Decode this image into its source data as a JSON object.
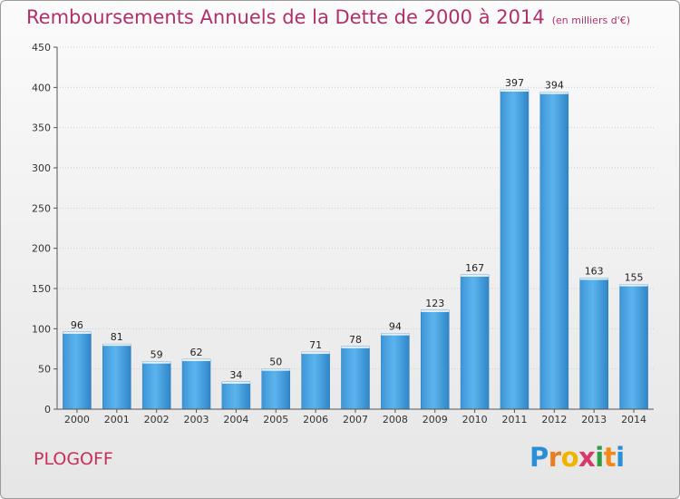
{
  "chart_data": {
    "type": "bar",
    "title": "Remboursements Annuels de la Dette de 2000 à 2014",
    "unit": "(en milliers d'€)",
    "categories": [
      "2000",
      "2001",
      "2002",
      "2003",
      "2004",
      "2005",
      "2006",
      "2007",
      "2008",
      "2009",
      "2010",
      "2011",
      "2012",
      "2013",
      "2014"
    ],
    "values": [
      96,
      81,
      59,
      62,
      34,
      50,
      71,
      78,
      94,
      123,
      167,
      397,
      394,
      163,
      155
    ],
    "ylim": [
      0,
      450
    ],
    "yticks": [
      0,
      50,
      100,
      150,
      200,
      250,
      300,
      350,
      400,
      450
    ],
    "grid": true,
    "xlabel": "",
    "ylabel": "",
    "bar_color": "#4ea6e3"
  },
  "footer": {
    "place": "PLOGOFF",
    "brand_letters": [
      "P",
      "r",
      "o",
      "x",
      "i",
      "t",
      "i"
    ],
    "brand_colors": [
      "#2a8fd6",
      "#e67e22",
      "#f0b400",
      "#d63a6a",
      "#2e9e45",
      "#f08a1c",
      "#2a8fd6"
    ]
  }
}
